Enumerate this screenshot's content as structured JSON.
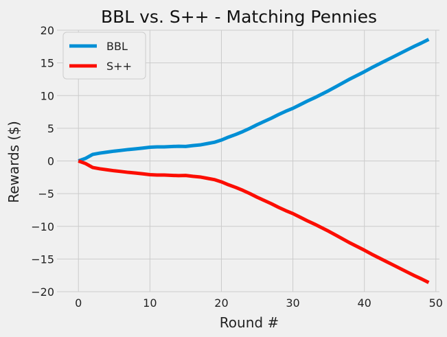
{
  "chart_data": {
    "type": "line",
    "title": "BBL vs. S++ - Matching Pennies",
    "xlabel": "Round #",
    "ylabel": "Rewards ($)",
    "xlim": [
      -3,
      50.5
    ],
    "ylim": [
      -20,
      20
    ],
    "xticks": [
      0,
      10,
      20,
      30,
      40,
      50
    ],
    "yticks": [
      -20,
      -15,
      -10,
      -5,
      0,
      5,
      10,
      15,
      20
    ],
    "grid": true,
    "legend_position": "top-left",
    "series": [
      {
        "name": "BBL",
        "color": "#008fd5",
        "x": [
          0,
          1,
          2,
          3,
          4,
          5,
          6,
          7,
          8,
          9,
          10,
          11,
          12,
          13,
          14,
          15,
          16,
          17,
          18,
          19,
          20,
          21,
          22,
          23,
          24,
          25,
          26,
          27,
          28,
          29,
          30,
          31,
          32,
          33,
          34,
          35,
          36,
          37,
          38,
          39,
          40,
          41,
          42,
          43,
          44,
          45,
          46,
          47,
          48,
          49
        ],
        "values": [
          0,
          0.4,
          1.0,
          1.2,
          1.35,
          1.5,
          1.62,
          1.75,
          1.85,
          1.97,
          2.1,
          2.15,
          2.15,
          2.2,
          2.25,
          2.22,
          2.35,
          2.45,
          2.65,
          2.85,
          3.2,
          3.65,
          4.05,
          4.5,
          5.0,
          5.55,
          6.05,
          6.55,
          7.1,
          7.6,
          8.05,
          8.6,
          9.15,
          9.65,
          10.2,
          10.75,
          11.35,
          11.95,
          12.55,
          13.1,
          13.65,
          14.25,
          14.8,
          15.35,
          15.9,
          16.45,
          17.0,
          17.55,
          18.05,
          18.6
        ]
      },
      {
        "name": "S++",
        "color": "#fc0d00",
        "x": [
          0,
          1,
          2,
          3,
          4,
          5,
          6,
          7,
          8,
          9,
          10,
          11,
          12,
          13,
          14,
          15,
          16,
          17,
          18,
          19,
          20,
          21,
          22,
          23,
          24,
          25,
          26,
          27,
          28,
          29,
          30,
          31,
          32,
          33,
          34,
          35,
          36,
          37,
          38,
          39,
          40,
          41,
          42,
          43,
          44,
          45,
          46,
          47,
          48,
          49
        ],
        "values": [
          0,
          -0.4,
          -1.0,
          -1.2,
          -1.35,
          -1.5,
          -1.62,
          -1.75,
          -1.85,
          -1.97,
          -2.1,
          -2.15,
          -2.15,
          -2.2,
          -2.25,
          -2.22,
          -2.35,
          -2.45,
          -2.65,
          -2.85,
          -3.2,
          -3.65,
          -4.05,
          -4.5,
          -5.0,
          -5.55,
          -6.05,
          -6.55,
          -7.1,
          -7.6,
          -8.05,
          -8.6,
          -9.15,
          -9.65,
          -10.2,
          -10.75,
          -11.35,
          -11.95,
          -12.55,
          -13.1,
          -13.65,
          -14.25,
          -14.8,
          -15.35,
          -15.9,
          -16.45,
          -17.0,
          -17.55,
          -18.05,
          -18.6
        ]
      }
    ]
  }
}
